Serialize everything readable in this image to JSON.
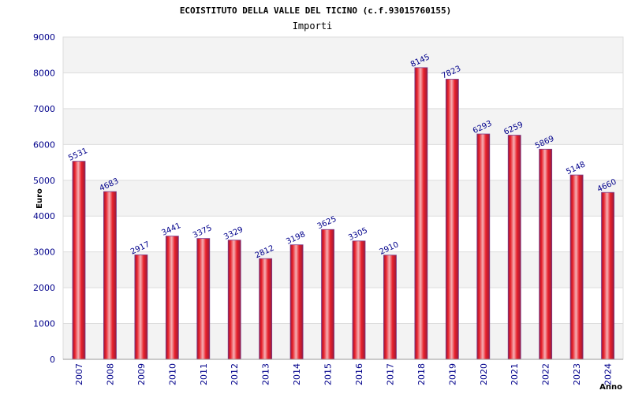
{
  "chart_data": {
    "type": "bar",
    "title": "ECOISTITUTO DELLA VALLE DEL TICINO (c.f.93015760155)",
    "subtitle": "Importi",
    "xlabel": "Anno",
    "ylabel": "Euro",
    "categories": [
      "2007",
      "2008",
      "2009",
      "2010",
      "2011",
      "2012",
      "2013",
      "2014",
      "2015",
      "2016",
      "2017",
      "2018",
      "2019",
      "2020",
      "2021",
      "2022",
      "2023",
      "2024"
    ],
    "values": [
      5531,
      4683,
      2917,
      3441,
      3375,
      3329,
      2812,
      3198,
      3625,
      3305,
      2910,
      8145,
      7823,
      6293,
      6259,
      5869,
      5148,
      4660
    ],
    "ylim": [
      0,
      9000
    ],
    "yticks": [
      0,
      1000,
      2000,
      3000,
      4000,
      5000,
      6000,
      7000,
      8000,
      9000
    ],
    "grid": true,
    "colors": {
      "bar": "#e8202a",
      "bar_highlight": "#f4a0a4",
      "bar_edge": "#7a3a8a",
      "band": "#f3f3f3",
      "grid": "#dddddd",
      "tick_text": "#00008b"
    }
  }
}
